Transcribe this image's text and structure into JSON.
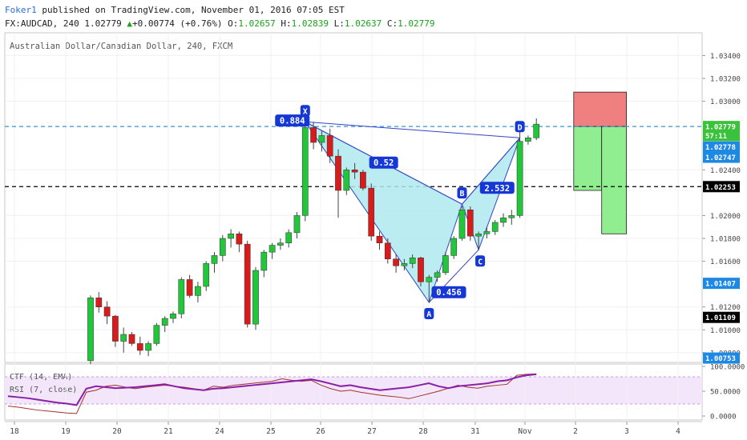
{
  "header": {
    "author": "Foker1",
    "published": "published on TradingView.com, November 01, 2016 07:05 EST",
    "symbol": "FX:AUDCAD, 240",
    "last": "1.02779",
    "arrow": "▲",
    "change": "+0.00774 (+0.76%)",
    "o_label": "O:",
    "o": "1.02657",
    "h_label": "H:",
    "h": "1.02839",
    "l_label": "L:",
    "l": "1.02637",
    "c_label": "C:",
    "c": "1.02779"
  },
  "chart_data": {
    "type": "candlestick",
    "title": "Australian Dollar/Canadian Dollar, 240, FXCM",
    "x_ticks": [
      "18",
      "19",
      "20",
      "21",
      "24",
      "25",
      "26",
      "27",
      "28",
      "31",
      "Nov",
      "2",
      "3",
      "4"
    ],
    "y_ticks": [
      "1.03400",
      "1.03200",
      "1.03000",
      "1.02400",
      "1.02000",
      "1.01800",
      "1.01600",
      "1.01200",
      "1.01000",
      "1.00800"
    ],
    "ylim": [
      1.0075,
      1.0355
    ],
    "candles": [
      [
        1.0073,
        1.013,
        1.007,
        1.0128
      ],
      [
        1.0128,
        1.0133,
        1.0115,
        1.012
      ],
      [
        1.012,
        1.0125,
        1.0105,
        1.0112
      ],
      [
        1.0112,
        1.0113,
        1.0085,
        1.009
      ],
      [
        1.009,
        1.0102,
        1.008,
        1.0096
      ],
      [
        1.0096,
        1.0098,
        1.0086,
        1.0088
      ],
      [
        1.0088,
        1.0094,
        1.0078,
        1.0082
      ],
      [
        1.0082,
        1.009,
        1.0077,
        1.0088
      ],
      [
        1.0088,
        1.0106,
        1.0086,
        1.0104
      ],
      [
        1.0104,
        1.0112,
        1.0098,
        1.011
      ],
      [
        1.011,
        1.0116,
        1.0106,
        1.0114
      ],
      [
        1.0114,
        1.0146,
        1.011,
        1.0144
      ],
      [
        1.0144,
        1.0148,
        1.0128,
        1.013
      ],
      [
        1.013,
        1.0142,
        1.0124,
        1.0138
      ],
      [
        1.0138,
        1.016,
        1.0134,
        1.0158
      ],
      [
        1.0158,
        1.0168,
        1.015,
        1.0165
      ],
      [
        1.0165,
        1.0183,
        1.016,
        1.018
      ],
      [
        1.018,
        1.0188,
        1.0172,
        1.0184
      ],
      [
        1.0184,
        1.0186,
        1.0168,
        1.0175
      ],
      [
        1.0175,
        1.0178,
        1.0102,
        1.0105
      ],
      [
        1.0105,
        1.0155,
        1.01,
        1.0152
      ],
      [
        1.0152,
        1.017,
        1.0146,
        1.0168
      ],
      [
        1.0168,
        1.0176,
        1.0162,
        1.0174
      ],
      [
        1.0174,
        1.018,
        1.017,
        1.0176
      ],
      [
        1.0176,
        1.0188,
        1.0172,
        1.0185
      ],
      [
        1.0185,
        1.0203,
        1.018,
        1.02
      ],
      [
        1.02,
        1.028,
        1.0195,
        1.0277
      ],
      [
        1.0277,
        1.0282,
        1.0258,
        1.0264
      ],
      [
        1.0264,
        1.0274,
        1.0256,
        1.027
      ],
      [
        1.027,
        1.0276,
        1.0246,
        1.0252
      ],
      [
        1.0252,
        1.0258,
        1.0198,
        1.0222
      ],
      [
        1.0222,
        1.0242,
        1.0218,
        1.024
      ],
      [
        1.024,
        1.0246,
        1.0232,
        1.0238
      ],
      [
        1.0238,
        1.024,
        1.0222,
        1.0224
      ],
      [
        1.0224,
        1.0228,
        1.0178,
        1.0182
      ],
      [
        1.0182,
        1.0186,
        1.017,
        1.0176
      ],
      [
        1.0176,
        1.018,
        1.0158,
        1.0162
      ],
      [
        1.0162,
        1.0166,
        1.015,
        1.0156
      ],
      [
        1.0156,
        1.0162,
        1.0152,
        1.0158
      ],
      [
        1.0158,
        1.0166,
        1.0154,
        1.0163
      ],
      [
        1.0163,
        1.0164,
        1.0138,
        1.0142
      ],
      [
        1.0142,
        1.0148,
        1.0124,
        1.0146
      ],
      [
        1.0146,
        1.0152,
        1.0142,
        1.015
      ],
      [
        1.015,
        1.0168,
        1.0148,
        1.0165
      ],
      [
        1.0165,
        1.0182,
        1.0162,
        1.018
      ],
      [
        1.018,
        1.0208,
        1.0178,
        1.0205
      ],
      [
        1.0205,
        1.0208,
        1.0178,
        1.0182
      ],
      [
        1.0182,
        1.0186,
        1.017,
        1.0184
      ],
      [
        1.0184,
        1.019,
        1.018,
        1.0186
      ],
      [
        1.0186,
        1.0196,
        1.0183,
        1.0194
      ],
      [
        1.0194,
        1.0202,
        1.019,
        1.0198
      ],
      [
        1.0198,
        1.0205,
        1.0192,
        1.02
      ],
      [
        1.02,
        1.0276,
        1.0198,
        1.0265
      ],
      [
        1.0265,
        1.027,
        1.0262,
        1.0268
      ],
      [
        1.0268,
        1.0285,
        1.0266,
        1.028
      ]
    ],
    "harmonic": {
      "points": {
        "X": {
          "i": 26,
          "p": 1.0282
        },
        "A": {
          "i": 41,
          "p": 1.0124
        },
        "B": {
          "i": 45,
          "p": 1.021
        },
        "C": {
          "i": 47,
          "p": 1.017
        },
        "D": {
          "i": 52,
          "p": 1.0268
        }
      },
      "ratios": [
        {
          "label": "0.884",
          "between": [
            "X",
            "D"
          ]
        },
        {
          "label": "0.52",
          "between": [
            "X",
            "B"
          ]
        },
        {
          "label": "2.532",
          "between": [
            "C",
            "D"
          ]
        },
        {
          "label": "0.456",
          "between": [
            "A",
            "C"
          ]
        }
      ],
      "fill": "#aee9ee",
      "line": "#3044c8"
    },
    "hlines": [
      {
        "price": 1.02779,
        "style": "dashed",
        "color": "#3a93d6"
      },
      {
        "price": 1.02253,
        "style": "dashed",
        "color": "#000000"
      }
    ],
    "trade_box": {
      "x_from_index": 56,
      "x_split_index": 59,
      "x_to_index": 62,
      "top": 1.0308,
      "entry": 1.02779,
      "stop1": 1.0222,
      "stop2": 1.0184,
      "loss_color": "#f08080",
      "profit_color": "#90ee90"
    },
    "price_labels": [
      {
        "text": "1.02779",
        "price": 1.02779,
        "bg": "#3ac23a",
        "fg": "#ffffff"
      },
      {
        "text": "57:11",
        "price": 1.027,
        "bg": "#3ac23a",
        "fg": "#ffffff"
      },
      {
        "text": "1.02778",
        "price": 1.026,
        "bg": "#1e88e5",
        "fg": "#ffffff"
      },
      {
        "text": "1.02747",
        "price": 1.0251,
        "bg": "#1e88e5",
        "fg": "#ffffff"
      },
      {
        "text": "1.02253",
        "price": 1.02253,
        "bg": "#000000",
        "fg": "#ffffff"
      },
      {
        "text": "1.01407",
        "price": 1.01407,
        "bg": "#1e88e5",
        "fg": "#ffffff"
      },
      {
        "text": "1.01109",
        "price": 1.01109,
        "bg": "#000000",
        "fg": "#ffffff"
      },
      {
        "text": "1.00753",
        "price": 1.00753,
        "bg": "#1e88e5",
        "fg": "#ffffff"
      }
    ],
    "indicator": {
      "label1": "CTF (14, EMA)",
      "label2": "RSI (7, close)",
      "y_ticks": [
        "100.0000",
        "50.0000",
        "0.0000"
      ],
      "ylim": [
        0,
        100
      ],
      "rsi": [
        20,
        18,
        15,
        12,
        10,
        8,
        6,
        5,
        48,
        52,
        60,
        62,
        58,
        55,
        58,
        60,
        62,
        60,
        58,
        55,
        52,
        60,
        58,
        62,
        64,
        66,
        68,
        70,
        75,
        72,
        70,
        72,
        62,
        55,
        50,
        52,
        48,
        45,
        42,
        40,
        38,
        35,
        40,
        45,
        50,
        56,
        62,
        58,
        56,
        60,
        62,
        64,
        82,
        84,
        85
      ],
      "ctf": [
        40,
        38,
        36,
        33,
        30,
        27,
        25,
        22,
        55,
        60,
        58,
        56,
        57,
        58,
        60,
        62,
        64,
        60,
        56,
        54,
        52,
        55,
        56,
        58,
        60,
        62,
        64,
        66,
        68,
        70,
        72,
        74,
        70,
        65,
        60,
        62,
        58,
        55,
        52,
        54,
        56,
        58,
        62,
        66,
        60,
        56,
        60,
        62,
        64,
        66,
        70,
        72,
        78,
        82,
        84
      ]
    }
  }
}
